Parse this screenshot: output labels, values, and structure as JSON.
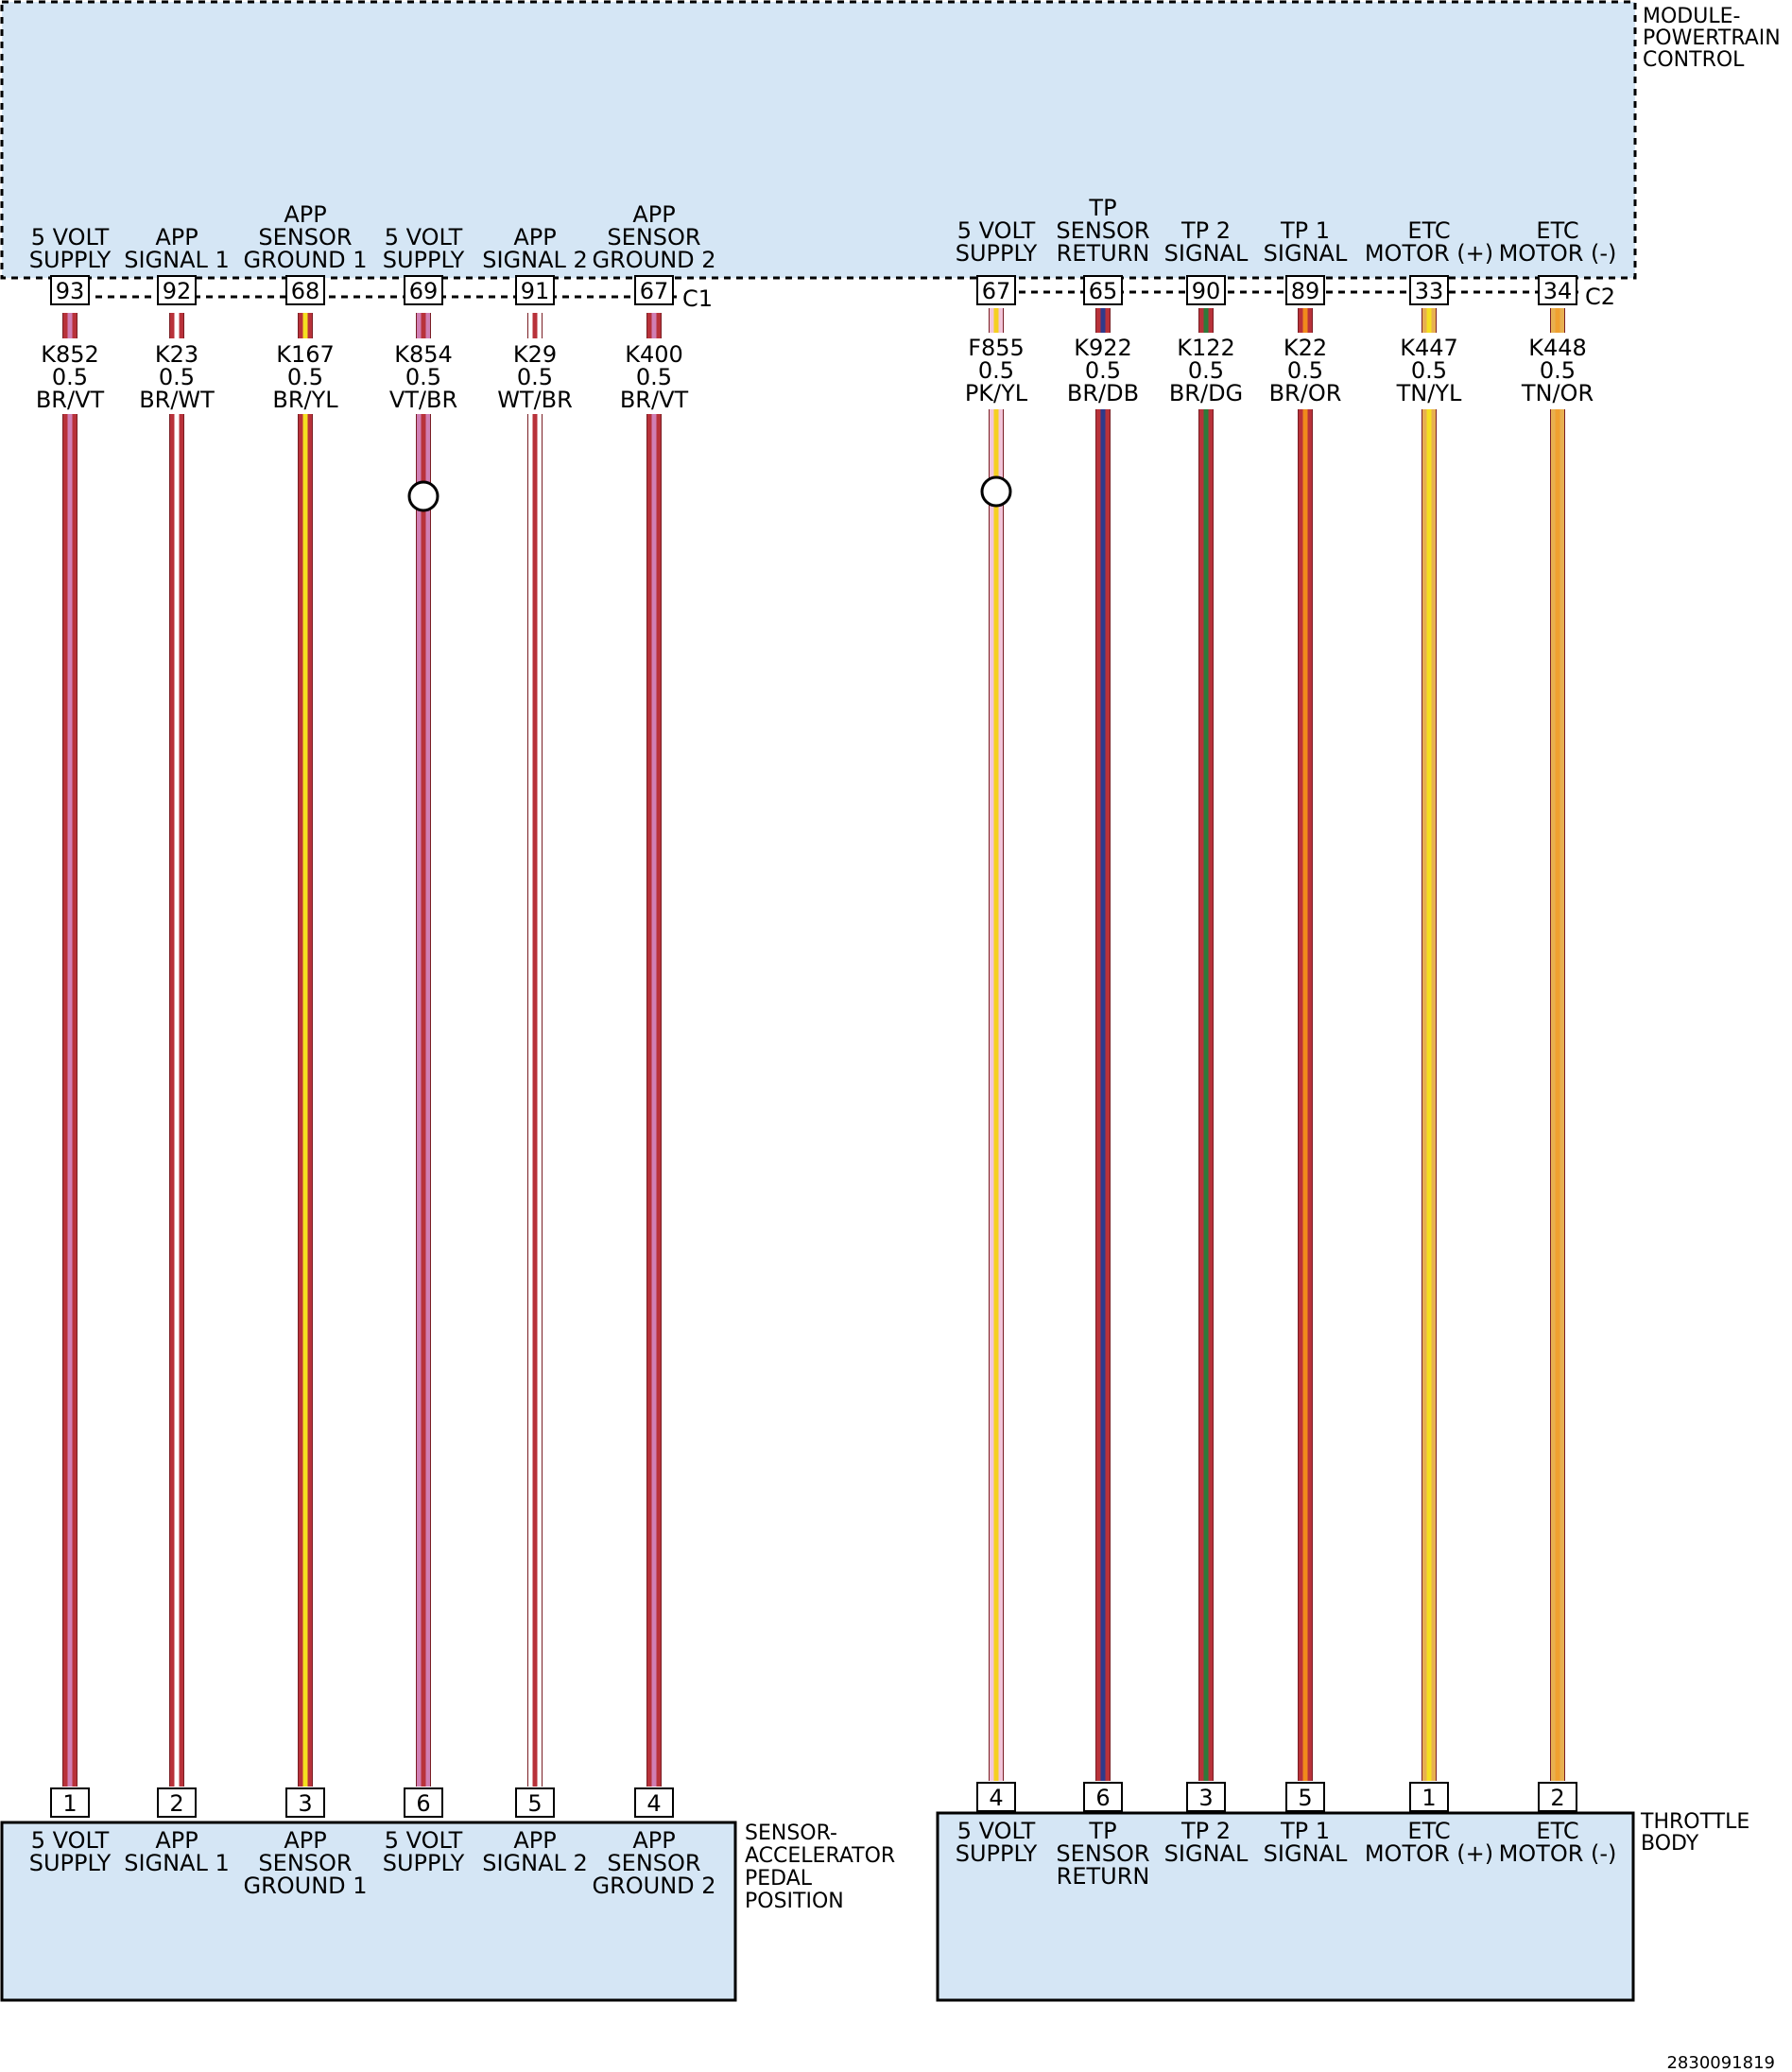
{
  "modules": {
    "pcm": {
      "title": [
        "MODULE-",
        "POWERTRAIN",
        "CONTROL"
      ],
      "fill": "#d5e6f5"
    },
    "app_sensor": {
      "title": [
        "SENSOR-",
        "ACCELERATOR",
        "PEDAL",
        "POSITION"
      ],
      "fill": "#d5e6f5"
    },
    "throttle_body": {
      "title": [
        "THROTTLE",
        "BODY"
      ],
      "fill": "#d5e6f5"
    }
  },
  "connectors": {
    "left": "C1",
    "right": "C2"
  },
  "figure_code": "2830091819",
  "circuits": [
    {
      "top_label": [
        "5 VOLT",
        "SUPPLY"
      ],
      "top_pin": "93",
      "wire": [
        "K852",
        "0.5",
        "BR/VT"
      ],
      "colors": [
        "#b8323a",
        "#d07fb4"
      ],
      "splice": false,
      "bottom_pin": "1",
      "bottom_label": [
        "5 VOLT",
        "SUPPLY"
      ],
      "group": "left"
    },
    {
      "top_label": [
        "APP",
        "SIGNAL 1"
      ],
      "top_pin": "92",
      "wire": [
        "K23",
        "0.5",
        "BR/WT"
      ],
      "colors": [
        "#b8323a",
        "#ffffff"
      ],
      "splice": false,
      "bottom_pin": "2",
      "bottom_label": [
        "APP",
        "SIGNAL 1"
      ],
      "group": "left"
    },
    {
      "top_label": [
        "APP",
        "SENSOR",
        "GROUND 1"
      ],
      "top_pin": "68",
      "wire": [
        "K167",
        "0.5",
        "BR/YL"
      ],
      "colors": [
        "#b8323a",
        "#f5e020"
      ],
      "splice": false,
      "bottom_pin": "3",
      "bottom_label": [
        "APP",
        "SENSOR",
        "GROUND 1"
      ],
      "group": "left"
    },
    {
      "top_label": [
        "5 VOLT",
        "SUPPLY"
      ],
      "top_pin": "69",
      "wire": [
        "K854",
        "0.5",
        "VT/BR"
      ],
      "colors": [
        "#d07fb4",
        "#b8323a"
      ],
      "splice": true,
      "bottom_pin": "6",
      "bottom_label": [
        "5 VOLT",
        "SUPPLY"
      ],
      "group": "left"
    },
    {
      "top_label": [
        "APP",
        "SIGNAL 2"
      ],
      "top_pin": "91",
      "wire": [
        "K29",
        "0.5",
        "WT/BR"
      ],
      "colors": [
        "#ffffff",
        "#b8323a"
      ],
      "splice": false,
      "bottom_pin": "5",
      "bottom_label": [
        "APP",
        "SIGNAL 2"
      ],
      "group": "left"
    },
    {
      "top_label": [
        "APP",
        "SENSOR",
        "GROUND 2"
      ],
      "top_pin": "67",
      "wire": [
        "K400",
        "0.5",
        "BR/VT"
      ],
      "colors": [
        "#b8323a",
        "#d07fb4"
      ],
      "splice": false,
      "bottom_pin": "4",
      "bottom_label": [
        "APP",
        "SENSOR",
        "GROUND 2"
      ],
      "group": "left"
    },
    {
      "top_label": [
        "5 VOLT",
        "SUPPLY"
      ],
      "top_pin": "67",
      "wire": [
        "F855",
        "0.5",
        "PK/YL"
      ],
      "colors": [
        "#f2c6da",
        "#f5d020"
      ],
      "splice": true,
      "bottom_pin": "4",
      "bottom_label": [
        "5 VOLT",
        "SUPPLY"
      ],
      "group": "right"
    },
    {
      "top_label": [
        "TP",
        "SENSOR",
        "RETURN"
      ],
      "top_pin": "65",
      "wire": [
        "K922",
        "0.5",
        "BR/DB"
      ],
      "colors": [
        "#b8323a",
        "#2e3a8c"
      ],
      "splice": false,
      "bottom_pin": "6",
      "bottom_label": [
        "TP",
        "SENSOR",
        "RETURN"
      ],
      "group": "right"
    },
    {
      "top_label": [
        "TP 2",
        "SIGNAL"
      ],
      "top_pin": "90",
      "wire": [
        "K122",
        "0.5",
        "BR/DG"
      ],
      "colors": [
        "#b8323a",
        "#2e7a3a"
      ],
      "splice": false,
      "bottom_pin": "3",
      "bottom_label": [
        "TP 2",
        "SIGNAL"
      ],
      "group": "right"
    },
    {
      "top_label": [
        "TP 1",
        "SIGNAL"
      ],
      "top_pin": "89",
      "wire": [
        "K22",
        "0.5",
        "BR/OR"
      ],
      "colors": [
        "#b8323a",
        "#f08a1c"
      ],
      "splice": false,
      "bottom_pin": "5",
      "bottom_label": [
        "TP 1",
        "SIGNAL"
      ],
      "group": "right"
    },
    {
      "top_label": [
        "ETC",
        "MOTOR (+)"
      ],
      "top_pin": "33",
      "wire": [
        "K447",
        "0.5",
        "TN/YL"
      ],
      "colors": [
        "#e8b050",
        "#f5e020"
      ],
      "splice": false,
      "bottom_pin": "1",
      "bottom_label": [
        "ETC",
        "MOTOR (+)"
      ],
      "group": "right"
    },
    {
      "top_label": [
        "ETC",
        "MOTOR (-)"
      ],
      "top_pin": "34",
      "wire": [
        "K448",
        "0.5",
        "TN/OR"
      ],
      "colors": [
        "#e8b050",
        "#f0a030"
      ],
      "splice": false,
      "bottom_pin": "2",
      "bottom_label": [
        "ETC",
        "MOTOR (-)"
      ],
      "group": "right"
    }
  ]
}
